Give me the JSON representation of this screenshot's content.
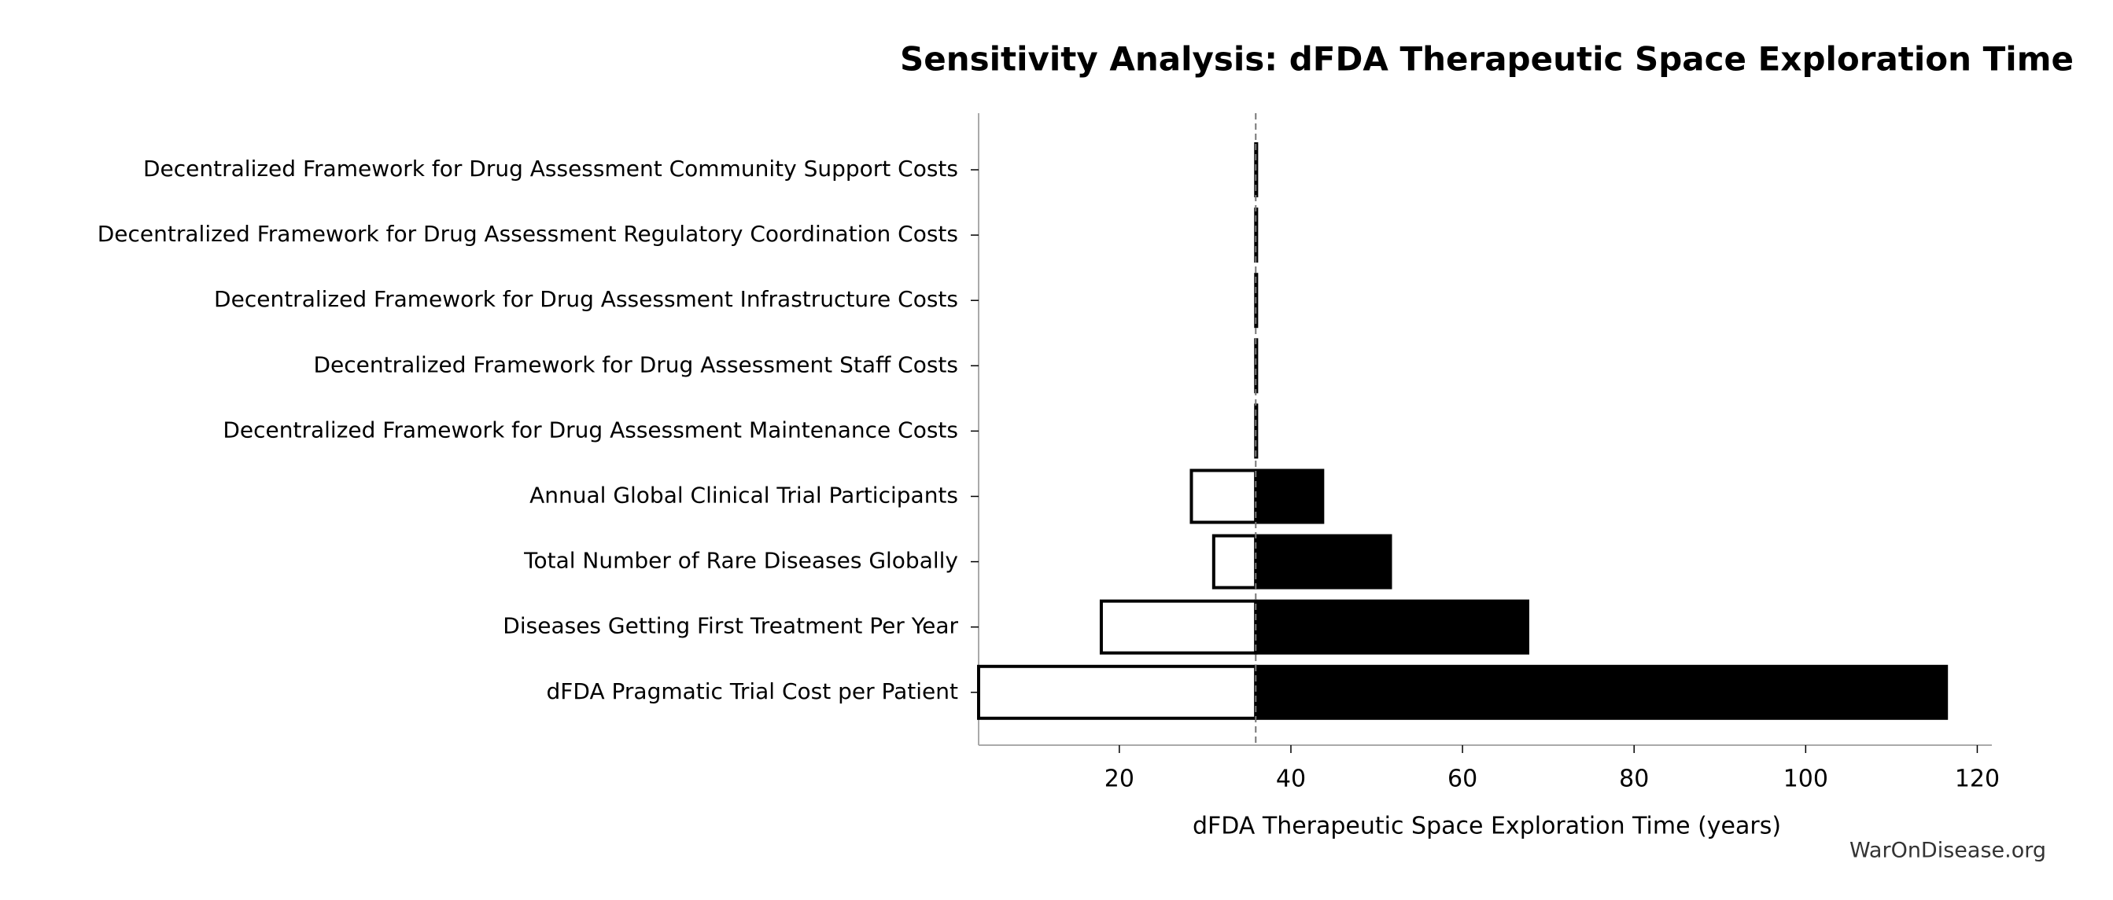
{
  "chart_data": {
    "type": "tornado",
    "title": "Sensitivity Analysis: dFDA Therapeutic Space Exploration Time",
    "x_label": "dFDA Therapeutic Space Exploration Time (years)",
    "footer": "WarOnDisease.org",
    "categories": [
      "Decentralized Framework for Drug Assessment Community Support Costs",
      "Decentralized Framework for Drug Assessment Regulatory Coordination Costs",
      "Decentralized Framework for Drug Assessment Infrastructure Costs",
      "Decentralized Framework for Drug Assessment Staff Costs",
      "Decentralized Framework for Drug Assessment Maintenance Costs",
      "Annual Global Clinical Trial Participants",
      "Total Number of Rare Diseases Globally",
      "Diseases Getting First Treatment Per Year",
      "dFDA Pragmatic Trial Cost per Patient"
    ],
    "baseline": 35.9,
    "series": [
      {
        "color": "#ffffff",
        "values": [
          35.9,
          35.9,
          35.9,
          35.9,
          35.9,
          28.4,
          31.0,
          17.9,
          3.6
        ]
      },
      {
        "color": "#000000",
        "values": [
          36.0,
          36.0,
          36.0,
          36.0,
          36.0,
          43.7,
          51.6,
          67.6,
          116.4
        ]
      }
    ],
    "xlim": [
      3.6,
      121.7
    ],
    "xticks": [
      20,
      40,
      60,
      80,
      100,
      120
    ]
  }
}
